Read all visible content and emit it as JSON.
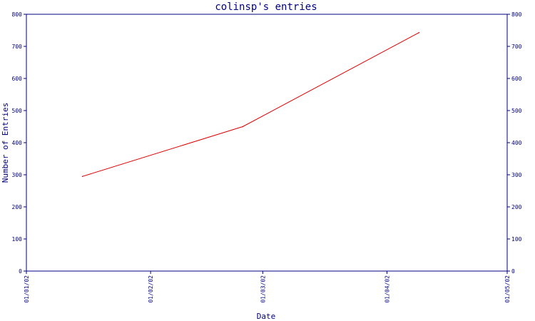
{
  "chart_data": {
    "type": "line",
    "title": "colinsp's entries",
    "xlabel": "Date",
    "ylabel": "Number of Entries",
    "x_ticks": [
      "01/01/02",
      "01/02/02",
      "01/03/02",
      "01/04/02",
      "01/05/02"
    ],
    "y_ticks": [
      0,
      100,
      200,
      300,
      400,
      500,
      600,
      700,
      800
    ],
    "ylim": [
      0,
      800
    ],
    "grid": false,
    "series": [
      {
        "color": "#e00000",
        "points": [
          {
            "x": "2002-01-15",
            "y": 295
          },
          {
            "x": "2002-02-24",
            "y": 450
          },
          {
            "x": "2002-04-09",
            "y": 743
          }
        ]
      }
    ],
    "colors": {
      "axis": "#000080",
      "line": "#e00000"
    }
  }
}
